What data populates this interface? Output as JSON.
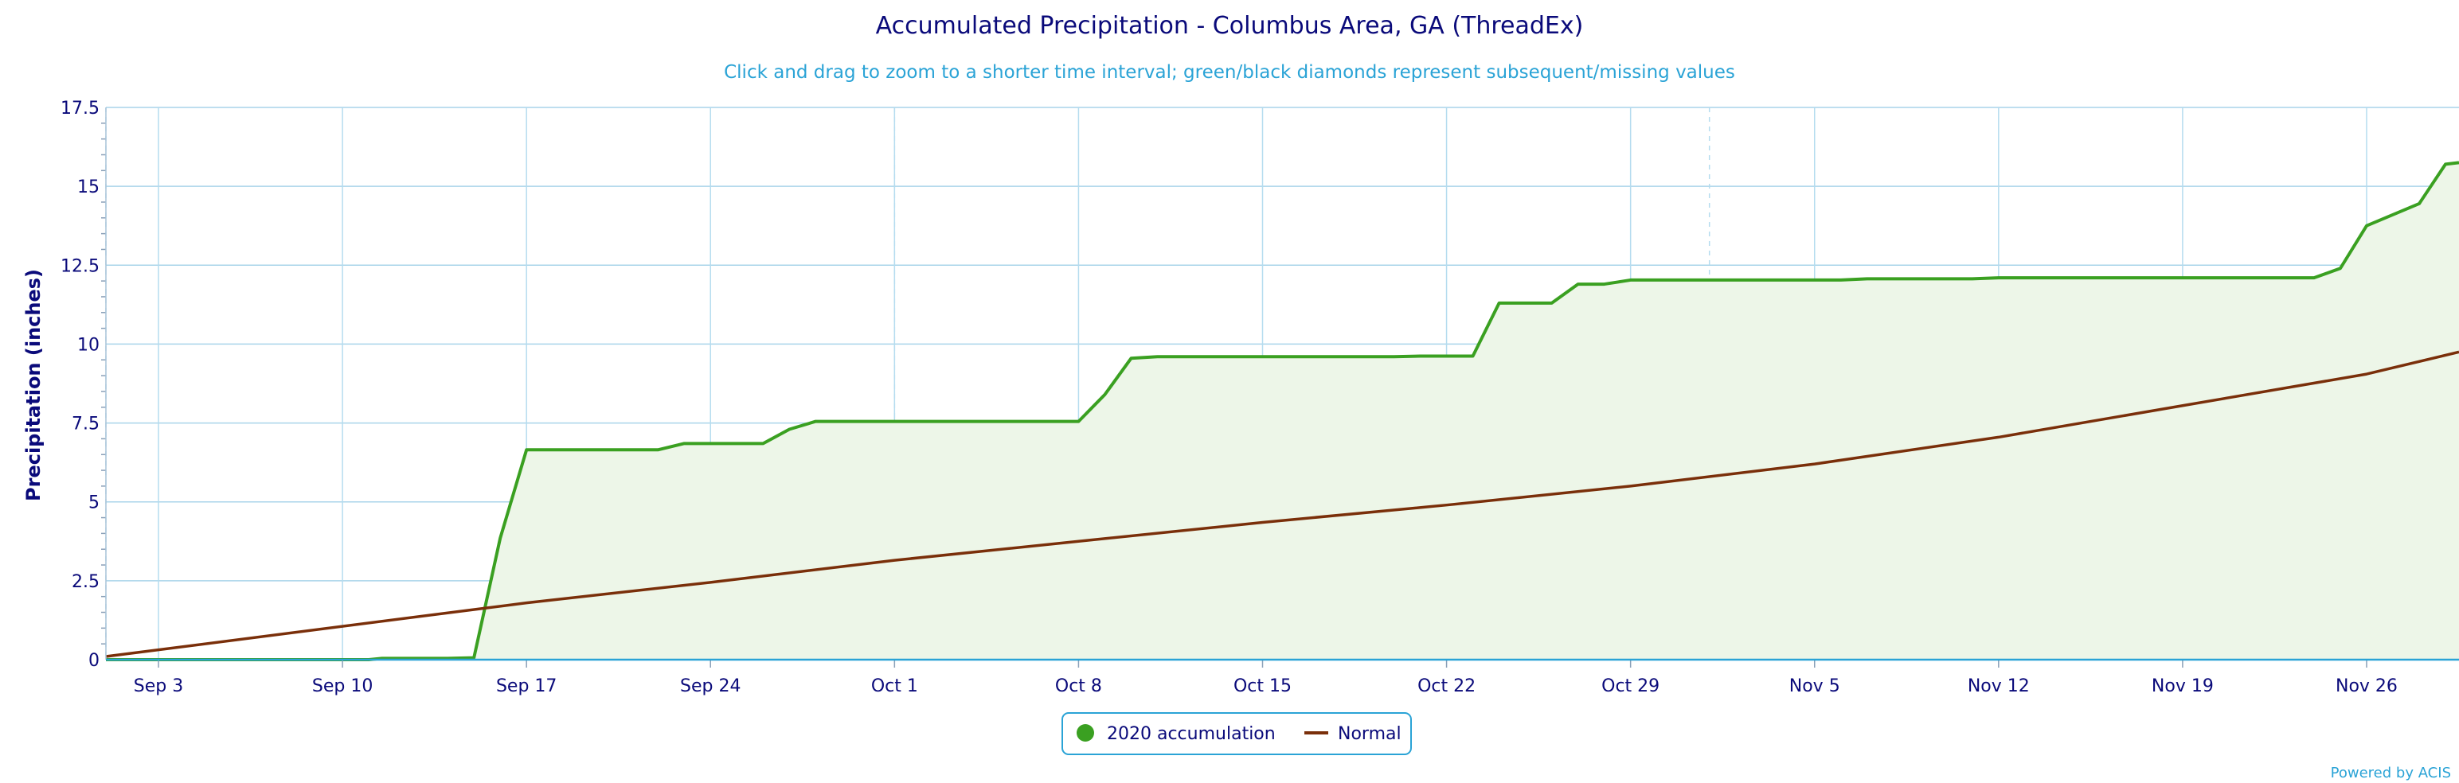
{
  "chart_data": {
    "type": "line",
    "title": "Accumulated Precipitation - Columbus Area, GA (ThreadEx)",
    "subtitle": "Click and drag to zoom to a shorter time interval; green/black diamonds represent subsequent/missing values",
    "ylabel": "Precipitation (inches)",
    "xlabel": "",
    "ylim": [
      0,
      17.5
    ],
    "yticks": [
      "0",
      "2.5",
      "5",
      "7.5",
      "10",
      "12.5",
      "15",
      "17.5"
    ],
    "yticks_values": [
      0,
      2.5,
      5,
      7.5,
      10,
      12.5,
      15,
      17.5
    ],
    "xlim_day": [
      1,
      89
    ],
    "xticks": [
      {
        "label": "Sep 3",
        "day": 3
      },
      {
        "label": "Sep 10",
        "day": 10
      },
      {
        "label": "Sep 17",
        "day": 17
      },
      {
        "label": "Sep 24",
        "day": 24
      },
      {
        "label": "Oct 1",
        "day": 31
      },
      {
        "label": "Oct 8",
        "day": 38
      },
      {
        "label": "Oct 15",
        "day": 45
      },
      {
        "label": "Oct 22",
        "day": 52
      },
      {
        "label": "Oct 29",
        "day": 59
      },
      {
        "label": "Nov 5",
        "day": 66
      },
      {
        "label": "Nov 12",
        "day": 73
      },
      {
        "label": "Nov 19",
        "day": 80
      },
      {
        "label": "Nov 26",
        "day": 87
      }
    ],
    "grid": true,
    "legend_placement": "bottom-center",
    "series": [
      {
        "name": "2020 accumulation",
        "color": "#3aa021",
        "fill": "#edf6e8",
        "points": [
          [
            1,
            0.0
          ],
          [
            3,
            0.0
          ],
          [
            10,
            0.0
          ],
          [
            11,
            0.0
          ],
          [
            11.5,
            0.04
          ],
          [
            14,
            0.04
          ],
          [
            15,
            0.06
          ],
          [
            16,
            3.85
          ],
          [
            17,
            6.65
          ],
          [
            22,
            6.65
          ],
          [
            23,
            6.85
          ],
          [
            26,
            6.85
          ],
          [
            27,
            7.3
          ],
          [
            28,
            7.55
          ],
          [
            38,
            7.55
          ],
          [
            39,
            8.4
          ],
          [
            40,
            9.55
          ],
          [
            41,
            9.6
          ],
          [
            50,
            9.6
          ],
          [
            51,
            9.62
          ],
          [
            53,
            9.62
          ],
          [
            54,
            11.3
          ],
          [
            56,
            11.3
          ],
          [
            57,
            11.9
          ],
          [
            58,
            11.9
          ],
          [
            59,
            12.03
          ],
          [
            67,
            12.03
          ],
          [
            68,
            12.07
          ],
          [
            72,
            12.07
          ],
          [
            73,
            12.1
          ],
          [
            85,
            12.1
          ],
          [
            86,
            12.4
          ],
          [
            87,
            13.75
          ],
          [
            88,
            14.1
          ],
          [
            89,
            14.45
          ],
          [
            90,
            15.7
          ],
          [
            91,
            15.75
          ]
        ]
      },
      {
        "name": "Normal",
        "color": "#7a2f0a",
        "points": [
          [
            1,
            0.1
          ],
          [
            17,
            1.8
          ],
          [
            24,
            2.45
          ],
          [
            31,
            3.15
          ],
          [
            38,
            3.75
          ],
          [
            45,
            4.35
          ],
          [
            52,
            4.9
          ],
          [
            59,
            5.5
          ],
          [
            66,
            6.2
          ],
          [
            73,
            7.05
          ],
          [
            80,
            8.05
          ],
          [
            87,
            9.05
          ],
          [
            91,
            9.75
          ]
        ]
      }
    ]
  },
  "legend": {
    "items": [
      {
        "label": "2020 accumulation",
        "color": "#3aa021",
        "marker": "circle"
      },
      {
        "label": "Normal",
        "color": "#7a2f0a",
        "marker": "line"
      }
    ]
  },
  "credit": "Powered by ACIS"
}
